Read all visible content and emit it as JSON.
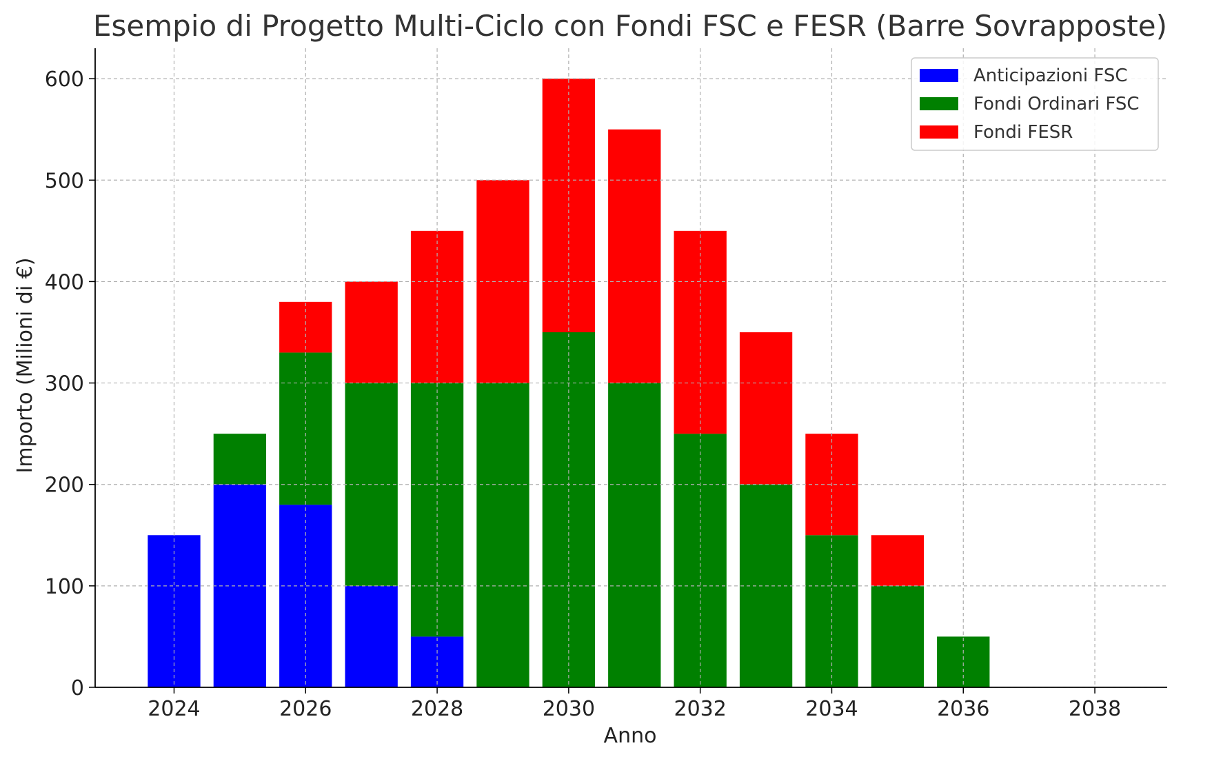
{
  "chart_data": {
    "type": "bar",
    "stacked": true,
    "title": "Esempio di Progetto Multi-Ciclo con Fondi FSC e FESR (Barre Sovrapposte)",
    "xlabel": "Anno",
    "ylabel": "Importo (Milioni di €)",
    "categories": [
      2024,
      2025,
      2026,
      2027,
      2028,
      2029,
      2030,
      2031,
      2032,
      2033,
      2034,
      2035,
      2036,
      2037,
      2038
    ],
    "x_ticks": [
      "2024",
      "2026",
      "2028",
      "2030",
      "2032",
      "2034",
      "2036",
      "2038"
    ],
    "x_tick_values": [
      2024,
      2026,
      2028,
      2030,
      2032,
      2034,
      2036,
      2038
    ],
    "xlim": [
      2022.8,
      2039.1
    ],
    "y_ticks": [
      "0",
      "100",
      "200",
      "300",
      "400",
      "500",
      "600"
    ],
    "y_tick_values": [
      0,
      100,
      200,
      300,
      400,
      500,
      600
    ],
    "ylim": [
      0,
      630
    ],
    "grid": true,
    "legend_position": "top-right",
    "series": [
      {
        "name": "Anticipazioni FSC",
        "color": "#0000ff",
        "values": [
          150,
          200,
          180,
          100,
          50,
          0,
          0,
          0,
          0,
          0,
          0,
          0,
          0,
          0,
          0
        ]
      },
      {
        "name": "Fondi Ordinari FSC",
        "color": "#008000",
        "values": [
          0,
          50,
          150,
          200,
          250,
          300,
          350,
          300,
          250,
          200,
          150,
          100,
          50,
          0,
          0
        ]
      },
      {
        "name": "Fondi FESR",
        "color": "#ff0000",
        "values": [
          0,
          0,
          50,
          100,
          150,
          200,
          250,
          250,
          200,
          150,
          100,
          50,
          0,
          0,
          0
        ]
      }
    ]
  }
}
